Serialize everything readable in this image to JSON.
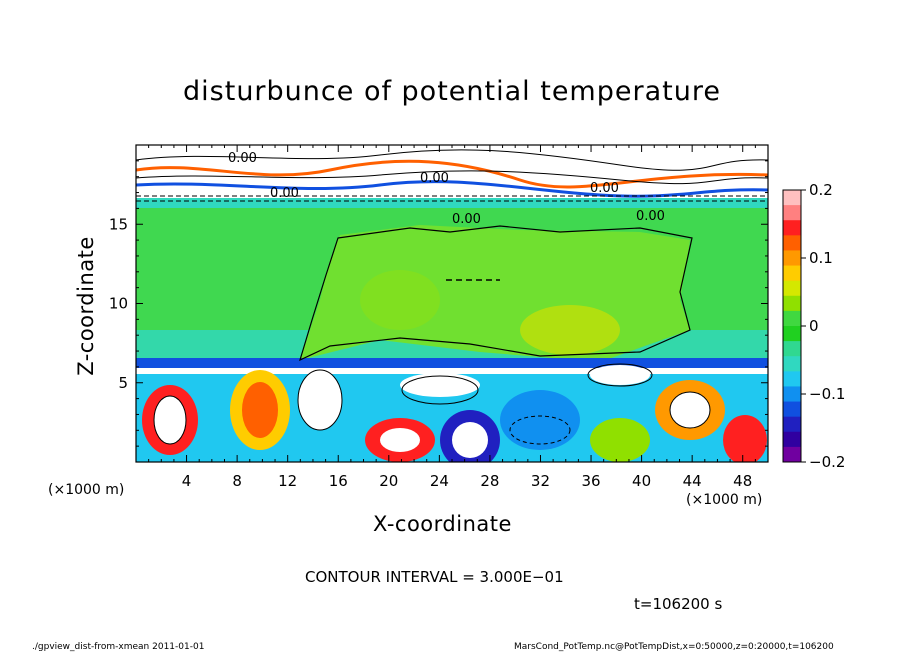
{
  "chart_data": {
    "type": "heatmap",
    "title": "disturbunce of potential temperature",
    "xlabel": "X-coordinate",
    "ylabel": "Z-coordinate",
    "x_unit": "(×1000 m)",
    "xlim": [
      0,
      50
    ],
    "ylim": [
      0,
      20
    ],
    "x_ticks": [
      "4",
      "8",
      "12",
      "16",
      "20",
      "24",
      "28",
      "32",
      "36",
      "40",
      "44",
      "48"
    ],
    "y_ticks": [
      "5",
      "10",
      "15"
    ],
    "colorbar": {
      "range": [
        -0.2,
        0.2
      ],
      "tick_labels": [
        "0.2",
        "0.1",
        "0",
        "−0.1",
        "−0.2"
      ],
      "colors": [
        "#ffc0c0",
        "#ff8080",
        "#ff2020",
        "#ff6000",
        "#ff9900",
        "#ffcc00",
        "#d4e800",
        "#90e000",
        "#40d840",
        "#20d020",
        "#30d890",
        "#30d8c0",
        "#20c8f0",
        "#1090f0",
        "#1050e0",
        "#2020c0",
        "#3000a0",
        "#7000a0"
      ]
    },
    "contour_labels": [
      "0.00",
      "0.00",
      "0.00",
      "0.00",
      "0.00",
      "0.00"
    ],
    "contour_interval_text": "CONTOUR INTERVAL = 3.000E−01",
    "time_text": "t=106200 s"
  },
  "footer": {
    "left": "./gpview_dist-from-xmean  2011-01-01",
    "right": "MarsCond_PotTemp.nc@PotTempDist,x=0:50000,z=0:20000,t=106200"
  }
}
